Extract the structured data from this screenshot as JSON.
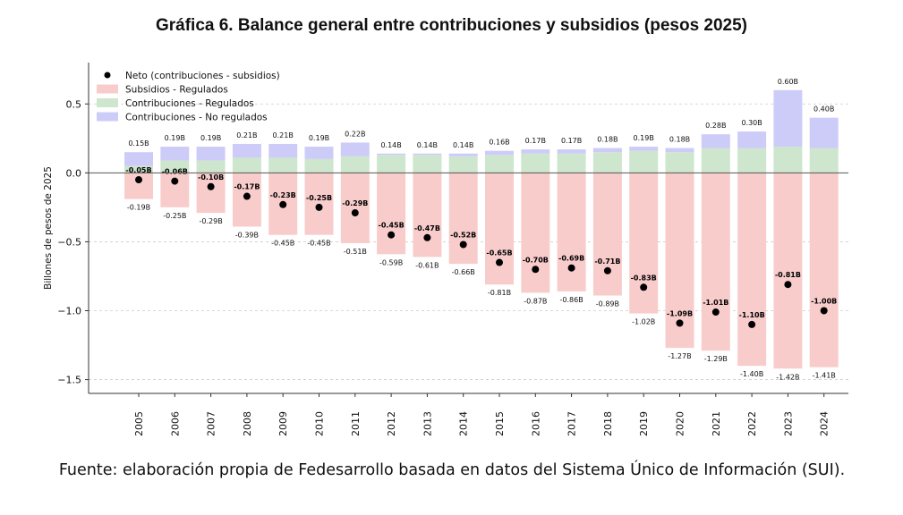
{
  "title": "Gráfica 6. Balance general entre contribuciones y subsidios (pesos 2025)",
  "source": "Fuente: elaboración propia de Fedesarrollo basada en datos del Sistema Único de Información (SUI).",
  "chart_data": {
    "type": "bar",
    "ylabel": "Billones de pesos de 2025",
    "ylim": [
      -1.6,
      0.8
    ],
    "yticks": [
      -1.5,
      -1.0,
      -0.5,
      0.0,
      0.5
    ],
    "ytick_labels": [
      "−1.5",
      "−1.0",
      "−0.5",
      "0.0",
      "0.5"
    ],
    "legend_position": "top-left",
    "grid": "horizontal-dashed",
    "categories": [
      "2005",
      "2006",
      "2007",
      "2008",
      "2009",
      "2010",
      "2011",
      "2012",
      "2013",
      "2014",
      "2015",
      "2016",
      "2017",
      "2018",
      "2019",
      "2020",
      "2021",
      "2022",
      "2023",
      "2024"
    ],
    "series": [
      {
        "name": "Neto (contribuciones - subsidios)",
        "kind": "scatter",
        "color": "#000000",
        "values": [
          -0.05,
          -0.06,
          -0.1,
          -0.17,
          -0.23,
          -0.25,
          -0.29,
          -0.45,
          -0.47,
          -0.52,
          -0.65,
          -0.7,
          -0.69,
          -0.71,
          -0.83,
          -1.09,
          -1.01,
          -1.1,
          -0.81,
          -1.0
        ],
        "labels": [
          "-0.05B",
          "-0.06B",
          "-0.10B",
          "-0.17B",
          "-0.23B",
          "-0.25B",
          "-0.29B",
          "-0.45B",
          "-0.47B",
          "-0.52B",
          "-0.65B",
          "-0.70B",
          "-0.69B",
          "-0.71B",
          "-0.83B",
          "-1.09B",
          "-1.01B",
          "-1.10B",
          "-0.81B",
          "-1.00B"
        ]
      },
      {
        "name": "Subsidios - Regulados",
        "kind": "bar",
        "color": "#f9cccc",
        "values": [
          -0.19,
          -0.25,
          -0.29,
          -0.39,
          -0.45,
          -0.45,
          -0.51,
          -0.59,
          -0.61,
          -0.66,
          -0.81,
          -0.87,
          -0.86,
          -0.89,
          -1.02,
          -1.27,
          -1.29,
          -1.4,
          -1.42,
          -1.41
        ],
        "labels": [
          "-0.19B",
          "-0.25B",
          "-0.29B",
          "-0.39B",
          "-0.45B",
          "-0.45B",
          "-0.51B",
          "-0.59B",
          "-0.61B",
          "-0.66B",
          "-0.81B",
          "-0.87B",
          "-0.86B",
          "-0.89B",
          "-1.02B",
          "-1.27B",
          "-1.29B",
          "-1.40B",
          "-1.42B",
          "-1.41B"
        ]
      },
      {
        "name": "Contribuciones - Regulados",
        "kind": "bar",
        "color": "#cde6cd",
        "values": [
          0.05,
          0.09,
          0.09,
          0.11,
          0.11,
          0.1,
          0.12,
          0.13,
          0.13,
          0.12,
          0.13,
          0.14,
          0.14,
          0.15,
          0.16,
          0.15,
          0.18,
          0.18,
          0.19,
          0.18
        ]
      },
      {
        "name": "Contribuciones - No regulados",
        "kind": "bar",
        "color": "#cdccf9",
        "values": [
          0.1,
          0.1,
          0.1,
          0.1,
          0.1,
          0.09,
          0.1,
          0.01,
          0.01,
          0.02,
          0.03,
          0.03,
          0.03,
          0.03,
          0.03,
          0.03,
          0.1,
          0.12,
          0.41,
          0.22
        ]
      }
    ],
    "total_labels": [
      "0.15B",
      "0.19B",
      "0.19B",
      "0.21B",
      "0.21B",
      "0.19B",
      "0.22B",
      "0.14B",
      "0.14B",
      "0.14B",
      "0.16B",
      "0.17B",
      "0.17B",
      "0.18B",
      "0.19B",
      "0.18B",
      "0.28B",
      "0.30B",
      "0.60B",
      "0.40B"
    ]
  }
}
